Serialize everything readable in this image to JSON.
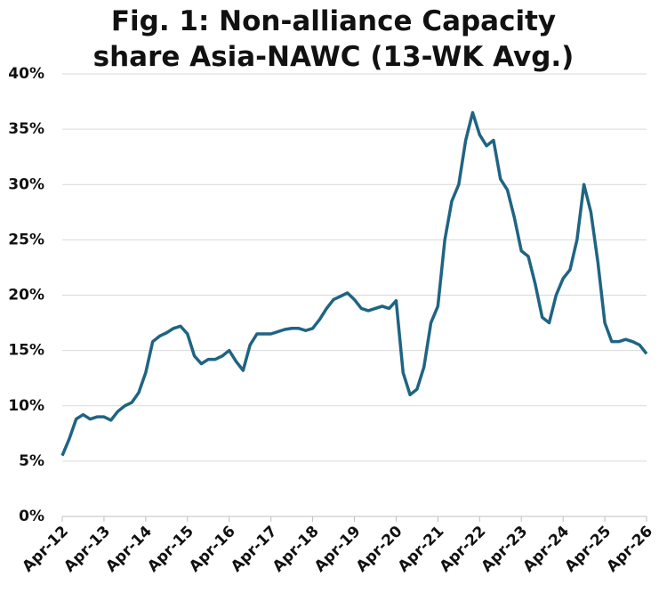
{
  "chart_data": {
    "type": "line",
    "title": "Fig. 1: Non-alliance Capacity share Asia-NAWC (13-WK Avg.)",
    "x": [
      "2012-04",
      "2012-06",
      "2012-08",
      "2012-10",
      "2012-12",
      "2013-02",
      "2013-04",
      "2013-06",
      "2013-08",
      "2013-10",
      "2013-12",
      "2014-02",
      "2014-04",
      "2014-06",
      "2014-08",
      "2014-10",
      "2014-12",
      "2015-02",
      "2015-04",
      "2015-06",
      "2015-08",
      "2015-10",
      "2015-12",
      "2016-02",
      "2016-04",
      "2016-06",
      "2016-08",
      "2016-10",
      "2016-12",
      "2017-02",
      "2017-04",
      "2017-06",
      "2017-08",
      "2017-10",
      "2017-12",
      "2018-02",
      "2018-04",
      "2018-06",
      "2018-08",
      "2018-10",
      "2018-12",
      "2019-02",
      "2019-04",
      "2019-06",
      "2019-08",
      "2019-10",
      "2019-12",
      "2020-02",
      "2020-04",
      "2020-06",
      "2020-08",
      "2020-10",
      "2020-12",
      "2021-02",
      "2021-04",
      "2021-06",
      "2021-08",
      "2021-10",
      "2021-12",
      "2022-02",
      "2022-04",
      "2022-06",
      "2022-08",
      "2022-10",
      "2022-12",
      "2023-02",
      "2023-04",
      "2023-06",
      "2023-08",
      "2023-10",
      "2023-12",
      "2024-02",
      "2024-04",
      "2024-06",
      "2024-08",
      "2024-10",
      "2024-12",
      "2025-02",
      "2025-04",
      "2025-06",
      "2025-08",
      "2025-10",
      "2025-12",
      "2026-02",
      "2026-04"
    ],
    "series": [
      {
        "name": "Non-alliance capacity share",
        "color": "#1f6483",
        "values": [
          5.5,
          7.0,
          8.8,
          9.2,
          8.8,
          9.0,
          9.0,
          8.7,
          9.5,
          10.0,
          10.3,
          11.2,
          13.0,
          15.8,
          16.3,
          16.6,
          17.0,
          17.2,
          16.5,
          14.5,
          13.8,
          14.2,
          14.2,
          14.5,
          15.0,
          14.0,
          13.2,
          15.5,
          16.5,
          16.5,
          16.5,
          16.7,
          16.9,
          17.0,
          17.0,
          16.8,
          17.0,
          17.8,
          18.8,
          19.6,
          19.9,
          20.2,
          19.6,
          18.8,
          18.6,
          18.8,
          19.0,
          18.8,
          19.5,
          13.0,
          11.0,
          11.5,
          13.5,
          17.5,
          19.0,
          25.0,
          28.5,
          30.0,
          34.0,
          36.5,
          34.5,
          33.5,
          34.0,
          30.5,
          29.5,
          27.0,
          24.0,
          23.5,
          21.0,
          18.0,
          17.5,
          20.0,
          21.5,
          22.3,
          25.0,
          30.0,
          27.5,
          23.0,
          17.5,
          15.8,
          15.8,
          16.0,
          15.8,
          15.5,
          14.7
        ]
      }
    ],
    "xlim": [
      "2012-04",
      "2026-04"
    ],
    "xticks": [
      {
        "value": "2012-04",
        "label": "Apr-12"
      },
      {
        "value": "2013-04",
        "label": "Apr-13"
      },
      {
        "value": "2014-04",
        "label": "Apr-14"
      },
      {
        "value": "2015-04",
        "label": "Apr-15"
      },
      {
        "value": "2016-04",
        "label": "Apr-16"
      },
      {
        "value": "2017-04",
        "label": "Apr-17"
      },
      {
        "value": "2018-04",
        "label": "Apr-18"
      },
      {
        "value": "2019-04",
        "label": "Apr-19"
      },
      {
        "value": "2020-04",
        "label": "Apr-20"
      },
      {
        "value": "2021-04",
        "label": "Apr-21"
      },
      {
        "value": "2022-04",
        "label": "Apr-22"
      },
      {
        "value": "2023-04",
        "label": "Apr-23"
      },
      {
        "value": "2024-04",
        "label": "Apr-24"
      },
      {
        "value": "2025-04",
        "label": "Apr-25"
      },
      {
        "value": "2026-04",
        "label": "Apr-26"
      }
    ],
    "ylim": [
      0,
      40
    ],
    "yticks": [
      {
        "value": 0,
        "label": "0%"
      },
      {
        "value": 5,
        "label": "5%"
      },
      {
        "value": 10,
        "label": "10%"
      },
      {
        "value": 15,
        "label": "15%"
      },
      {
        "value": 20,
        "label": "20%"
      },
      {
        "value": 25,
        "label": "25%"
      },
      {
        "value": 30,
        "label": "30%"
      },
      {
        "value": 35,
        "label": "35%"
      },
      {
        "value": 40,
        "label": "40%"
      }
    ],
    "grid": true
  }
}
